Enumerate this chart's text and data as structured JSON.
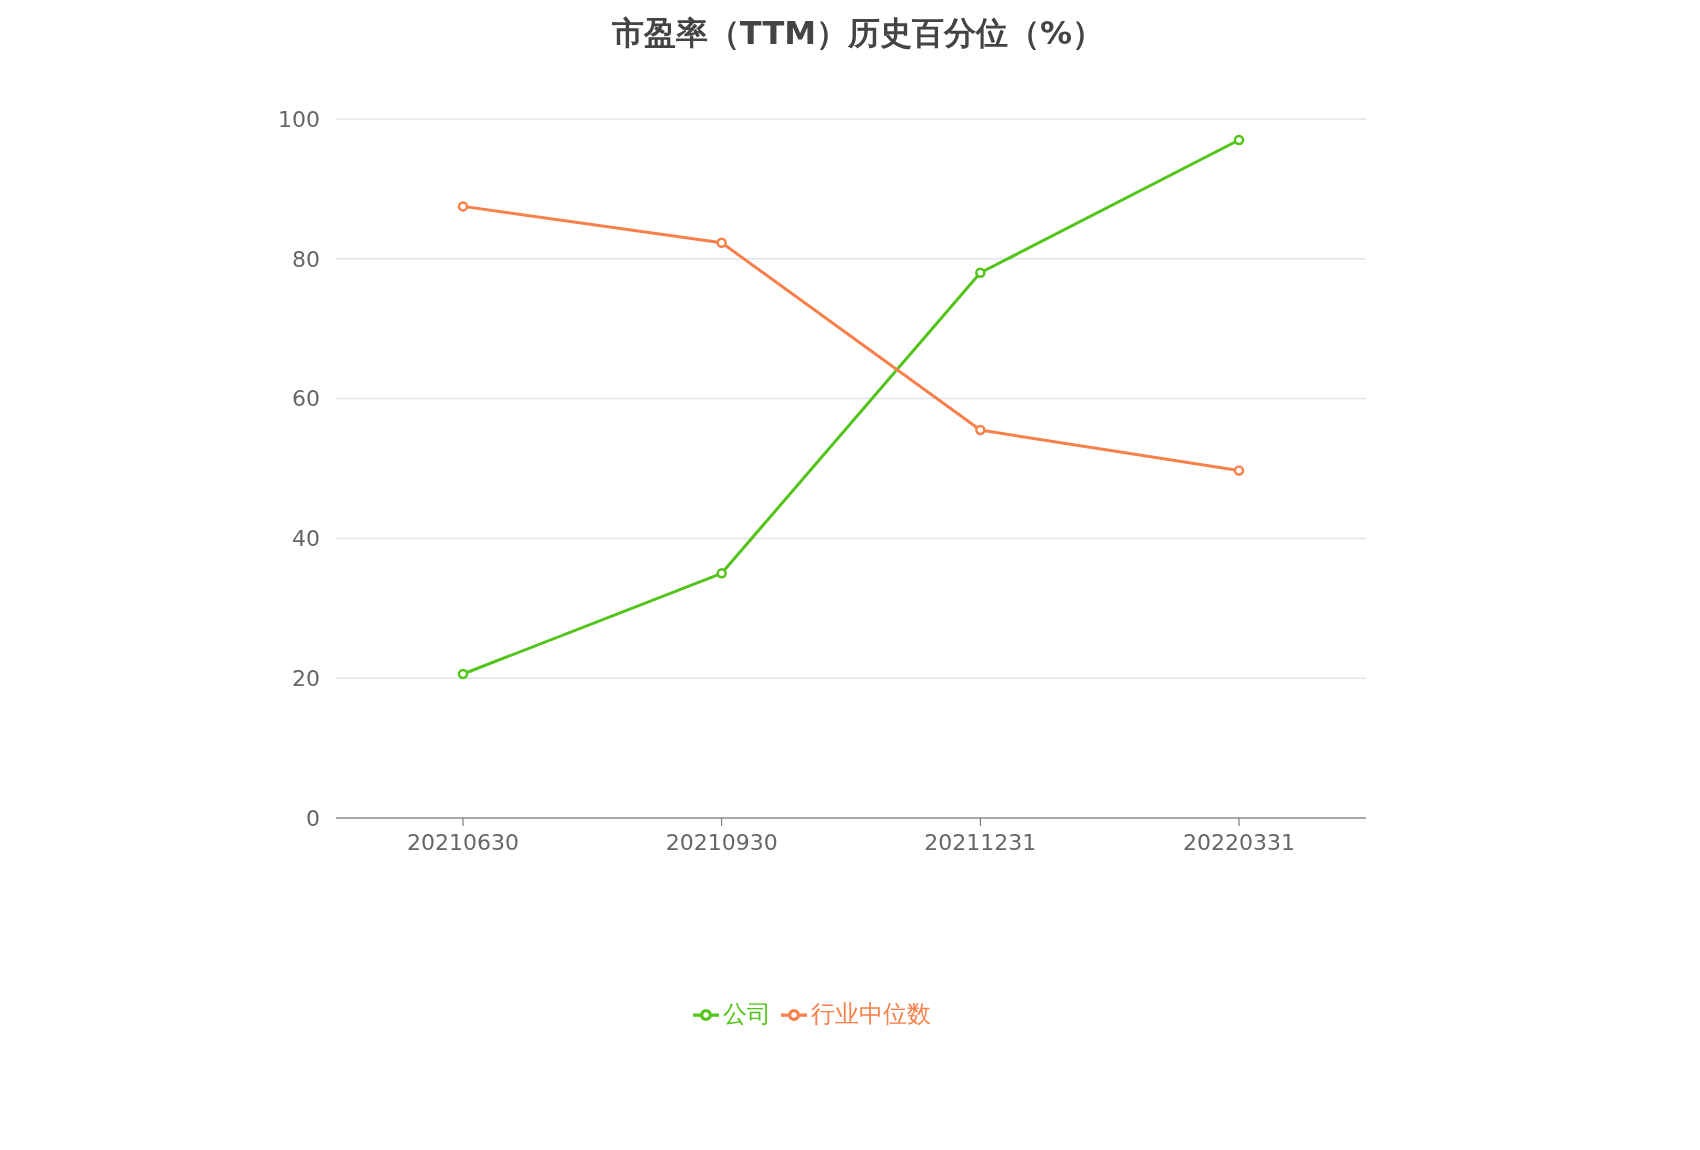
{
  "chart_data": {
    "type": "line",
    "title": "市盈率（TTM）历史百分位（%）",
    "categories": [
      "20210630",
      "20210930",
      "20211231",
      "20220331"
    ],
    "series": [
      {
        "name": "公司",
        "color": "#52c41a",
        "values": [
          20.6,
          35.0,
          78.0,
          97.0
        ]
      },
      {
        "name": "行业中位数",
        "color": "#f7804b",
        "values": [
          87.5,
          82.3,
          55.5,
          49.7
        ]
      }
    ],
    "ylim": [
      0,
      100
    ],
    "yticks": [
      0,
      20,
      40,
      60,
      80,
      100
    ],
    "grid": "y",
    "legend": "bottom",
    "marker": "circle",
    "line_style": "solid"
  }
}
